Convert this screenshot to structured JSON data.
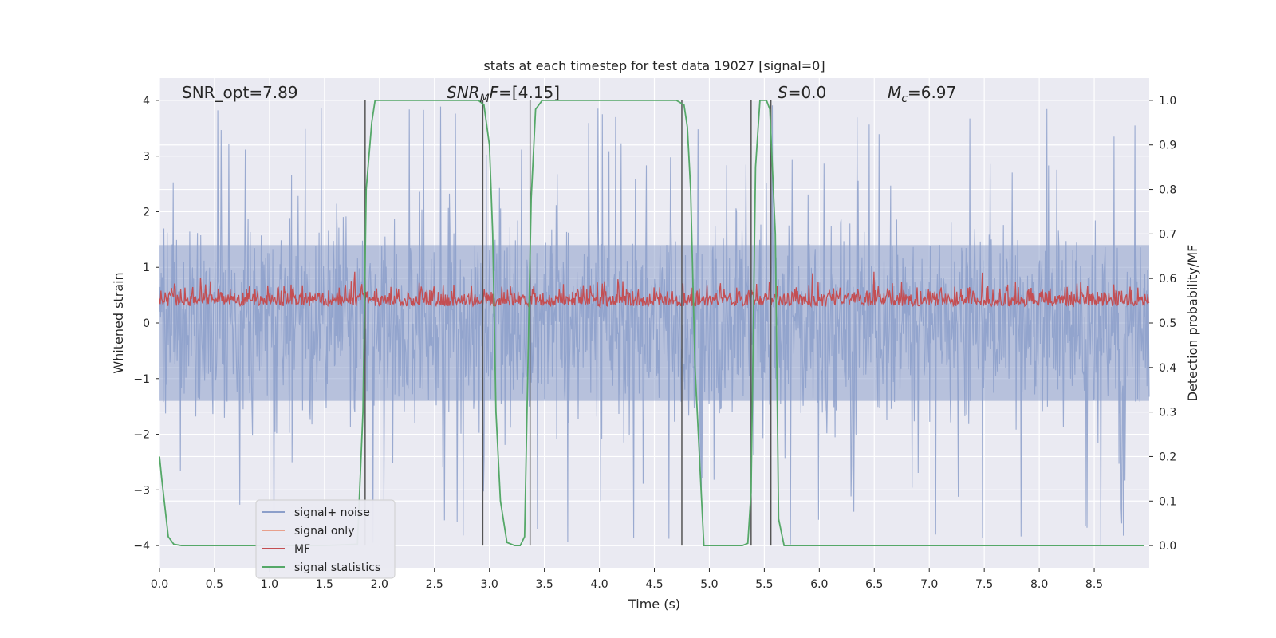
{
  "chart_data": {
    "type": "line",
    "title": "stats at each timestep for test data 19027 [signal=0]",
    "xlabel": "Time (s)",
    "ylabel": "Whitened strain",
    "y2label": "Detection probability/MF",
    "xlim": [
      0,
      9.0
    ],
    "ylim": [
      -4.4,
      4.4
    ],
    "y2lim": [
      -0.05,
      1.05
    ],
    "x_ticks": [
      0.0,
      0.5,
      1.0,
      1.5,
      2.0,
      2.5,
      3.0,
      3.5,
      4.0,
      4.5,
      5.0,
      5.5,
      6.0,
      6.5,
      7.0,
      7.5,
      8.0,
      8.5
    ],
    "x_tick_labels": [
      "0.0",
      "0.5",
      "1.0",
      "1.5",
      "2.0",
      "2.5",
      "3.0",
      "3.5",
      "4.0",
      "4.5",
      "5.0",
      "5.5",
      "6.0",
      "6.5",
      "7.0",
      "7.5",
      "8.0",
      "8.5"
    ],
    "y_ticks": [
      -4,
      -3,
      -2,
      -1,
      0,
      1,
      2,
      3,
      4
    ],
    "y_tick_labels": [
      "−4",
      "−3",
      "−2",
      "−1",
      "0",
      "1",
      "2",
      "3",
      "4"
    ],
    "y2_ticks": [
      0.0,
      0.1,
      0.2,
      0.3,
      0.4,
      0.5,
      0.6,
      0.7,
      0.8,
      0.9,
      1.0
    ],
    "y2_tick_labels": [
      "0.0",
      "0.1",
      "0.2",
      "0.3",
      "0.4",
      "0.5",
      "0.6",
      "0.7",
      "0.8",
      "0.9",
      "1.0"
    ],
    "annotations": [
      "SNR_opt=7.89",
      "SNR_MF=[4.15]",
      "S=0.0",
      "M_c=6.97"
    ],
    "vertical_lines_x": [
      1.87,
      2.94,
      3.37,
      4.75,
      5.38,
      5.56
    ],
    "series": [
      {
        "name": "signal+ noise",
        "color": "#8c9fca",
        "axis": "left",
        "description": "noise band approx ±2 with spikes to ±4"
      },
      {
        "name": "signal only",
        "color": "#e8a08c",
        "axis": "left",
        "x": [],
        "y": []
      },
      {
        "name": "MF",
        "color": "#c44e52",
        "axis": "left",
        "description": "fluctuates between approx 0.05 and 0.9"
      },
      {
        "name": "signal statistics",
        "color": "#55a868",
        "axis": "right",
        "x": [
          0.0,
          0.02,
          0.08,
          0.13,
          0.2,
          1.5,
          1.8,
          1.85,
          1.88,
          1.93,
          1.96,
          2.0,
          2.9,
          2.95,
          3.0,
          3.03,
          3.06,
          3.1,
          3.16,
          3.23,
          3.28,
          3.32,
          3.35,
          3.38,
          3.42,
          3.48,
          4.7,
          4.77,
          4.8,
          4.83,
          4.87,
          4.95,
          5.3,
          5.35,
          5.38,
          5.42,
          5.46,
          5.52,
          5.55,
          5.6,
          5.63,
          5.68,
          8.95
        ],
        "y": [
          0.2,
          0.15,
          0.02,
          0.003,
          0.0,
          0.0,
          0.003,
          0.3,
          0.8,
          0.95,
          1.0,
          1.0,
          1.0,
          0.99,
          0.9,
          0.7,
          0.3,
          0.1,
          0.007,
          0.0,
          0.0,
          0.02,
          0.4,
          0.78,
          0.98,
          1.0,
          1.0,
          0.99,
          0.94,
          0.8,
          0.4,
          0.0,
          0.0,
          0.005,
          0.12,
          0.85,
          1.0,
          1.0,
          0.98,
          0.7,
          0.06,
          0.0,
          0.0
        ]
      }
    ],
    "legend": [
      "signal+ noise",
      "signal only",
      "MF",
      "signal statistics"
    ],
    "legend_position": "lower-left",
    "grid": true
  }
}
